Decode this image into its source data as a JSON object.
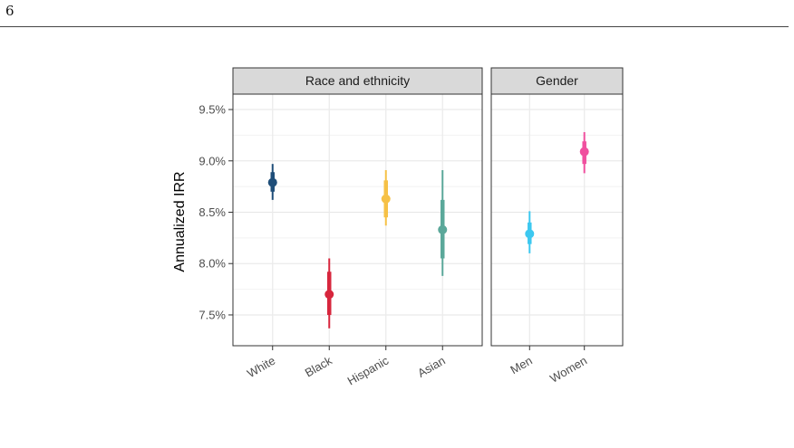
{
  "page": {
    "number": "6"
  },
  "chart_data": {
    "type": "scatter",
    "subtype": "point-range",
    "ylabel": "Annualized IRR",
    "y_unit": "%",
    "ylim": [
      7.2,
      9.65
    ],
    "y_ticks": [
      7.5,
      8.0,
      8.5,
      9.0,
      9.5
    ],
    "y_tick_labels": [
      "7.5%",
      "8.0%",
      "8.5%",
      "9.0%",
      "9.5%"
    ],
    "grid": true,
    "legend": "none",
    "panels": [
      {
        "title": "Race and ethnicity",
        "categories": [
          "White",
          "Black",
          "Hispanic",
          "Asian"
        ],
        "points": [
          {
            "label": "White",
            "value": 8.79,
            "inner": [
              8.7,
              8.89
            ],
            "outer": [
              8.62,
              8.97
            ],
            "color": "#1f4e79"
          },
          {
            "label": "Black",
            "value": 7.7,
            "inner": [
              7.5,
              7.92
            ],
            "outer": [
              7.37,
              8.05
            ],
            "color": "#d7263d"
          },
          {
            "label": "Hispanic",
            "value": 8.63,
            "inner": [
              8.45,
              8.81
            ],
            "outer": [
              8.37,
              8.91
            ],
            "color": "#f6c146"
          },
          {
            "label": "Asian",
            "value": 8.33,
            "inner": [
              8.05,
              8.62
            ],
            "outer": [
              7.88,
              8.91
            ],
            "color": "#5ba89a"
          }
        ]
      },
      {
        "title": "Gender",
        "categories": [
          "Men",
          "Women"
        ],
        "points": [
          {
            "label": "Men",
            "value": 8.29,
            "inner": [
              8.19,
              8.4
            ],
            "outer": [
              8.1,
              8.51
            ],
            "color": "#3cc8f0"
          },
          {
            "label": "Women",
            "value": 9.09,
            "inner": [
              8.97,
              9.19
            ],
            "outer": [
              8.88,
              9.28
            ],
            "color": "#f0509f"
          }
        ]
      }
    ]
  }
}
